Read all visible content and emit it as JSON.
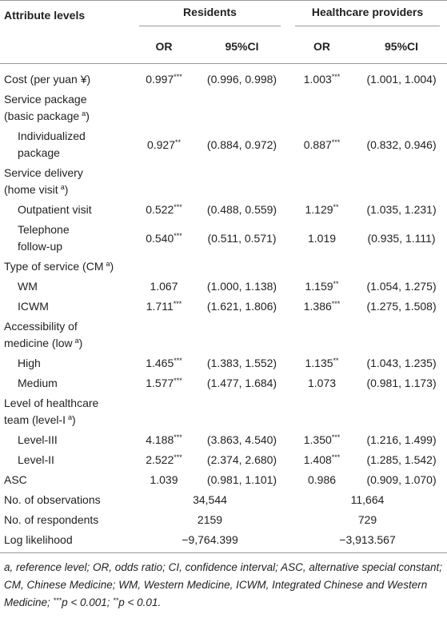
{
  "table": {
    "header": {
      "attribute": "Attribute levels",
      "groups": [
        "Residents",
        "Healthcare providers"
      ],
      "columns": [
        "OR",
        "95%CI",
        "OR",
        "95%CI"
      ]
    },
    "rows": [
      {
        "label": [
          "Cost (per yuan ¥)"
        ],
        "residents": {
          "or": "0.997",
          "sig": "***",
          "ci": "(0.996, 0.998)"
        },
        "providers": {
          "or": "1.003",
          "sig": "***",
          "ci": "(1.001, 1.004)"
        }
      },
      {
        "label": [
          "Service package",
          {
            "text": "(basic package",
            "sup": "a",
            "tail": ")"
          }
        ]
      },
      {
        "label": [
          "Individualized",
          "package"
        ],
        "indent": true,
        "residents": {
          "or": "0.927",
          "sig": "**",
          "ci": "(0.884, 0.972)"
        },
        "providers": {
          "or": "0.887",
          "sig": "***",
          "ci": "(0.832, 0.946)"
        }
      },
      {
        "label": [
          "Service delivery",
          {
            "text": "(home visit",
            "sup": "a",
            "tail": ")"
          }
        ]
      },
      {
        "label": [
          "Outpatient visit"
        ],
        "indent": true,
        "residents": {
          "or": "0.522",
          "sig": "***",
          "ci": "(0.488, 0.559)"
        },
        "providers": {
          "or": "1.129",
          "sig": "**",
          "ci": "(1.035, 1.231)"
        }
      },
      {
        "label": [
          "Telephone",
          "follow-up"
        ],
        "indent": true,
        "residents": {
          "or": "0.540",
          "sig": "***",
          "ci": "(0.511, 0.571)"
        },
        "providers": {
          "or": "1.019",
          "ci": "(0.935, 1.111)"
        }
      },
      {
        "label": [
          {
            "text": "Type of service (CM",
            "sup": "a",
            "tail": ")"
          }
        ]
      },
      {
        "label": [
          "WM"
        ],
        "indent": true,
        "residents": {
          "or": "1.067",
          "ci": "(1.000, 1.138)"
        },
        "providers": {
          "or": "1.159",
          "sig": "**",
          "ci": "(1.054, 1.275)"
        }
      },
      {
        "label": [
          "ICWM"
        ],
        "indent": true,
        "residents": {
          "or": "1.711",
          "sig": "***",
          "ci": "(1.621, 1.806)"
        },
        "providers": {
          "or": "1.386",
          "sig": "***",
          "ci": "(1.275, 1.508)"
        }
      },
      {
        "label": [
          "Accessibility of",
          {
            "text": "medicine (low",
            "sup": "a",
            "tail": ")"
          }
        ]
      },
      {
        "label": [
          "High"
        ],
        "indent": true,
        "residents": {
          "or": "1.465",
          "sig": "***",
          "ci": "(1.383, 1.552)"
        },
        "providers": {
          "or": "1.135",
          "sig": "**",
          "ci": "(1.043, 1.235)"
        }
      },
      {
        "label": [
          "Medium"
        ],
        "indent": true,
        "residents": {
          "or": "1.577",
          "sig": "***",
          "ci": "(1.477, 1.684)"
        },
        "providers": {
          "or": "1.073",
          "ci": "(0.981, 1.173)"
        }
      },
      {
        "label": [
          "Level of healthcare",
          {
            "text": "team (level-I",
            "sup": "a",
            "tail": ")"
          }
        ]
      },
      {
        "label": [
          "Level-III"
        ],
        "indent": true,
        "residents": {
          "or": "4.188",
          "sig": "***",
          "ci": "(3.863, 4.540)"
        },
        "providers": {
          "or": "1.350",
          "sig": "***",
          "ci": "(1.216, 1.499)"
        }
      },
      {
        "label": [
          "Level-II"
        ],
        "indent": true,
        "residents": {
          "or": "2.522",
          "sig": "***",
          "ci": "(2.374, 2.680)"
        },
        "providers": {
          "or": "1.408",
          "sig": "***",
          "ci": "(1.285, 1.542)"
        }
      },
      {
        "label": [
          "ASC"
        ],
        "residents": {
          "or": "1.039",
          "ci": "(0.981, 1.101)"
        },
        "providers": {
          "or": "0.986",
          "ci": "(0.909, 1.070)"
        }
      },
      {
        "label": [
          "No. of observations"
        ],
        "residents": {
          "value": "34,544"
        },
        "providers": {
          "value": "11,664"
        }
      },
      {
        "label": [
          "No. of respondents"
        ],
        "residents": {
          "value": "2159"
        },
        "providers": {
          "value": "729"
        }
      },
      {
        "label": [
          "Log likelihood"
        ],
        "residents": {
          "value": "−9,764.399"
        },
        "providers": {
          "value": "−3,913.567"
        }
      }
    ]
  },
  "footnote": {
    "definitions": "a, reference level; OR, odds ratio; CI, confidence interval; ASC, alternative special constant; CM, Chinese Medicine; WM, Western Medicine, ICWM, Integrated Chinese and Western Medicine;",
    "p_values": [
      {
        "stars": "***",
        "text": "p < 0.001;"
      },
      {
        "stars": "**",
        "text": "p < 0.01."
      }
    ]
  }
}
